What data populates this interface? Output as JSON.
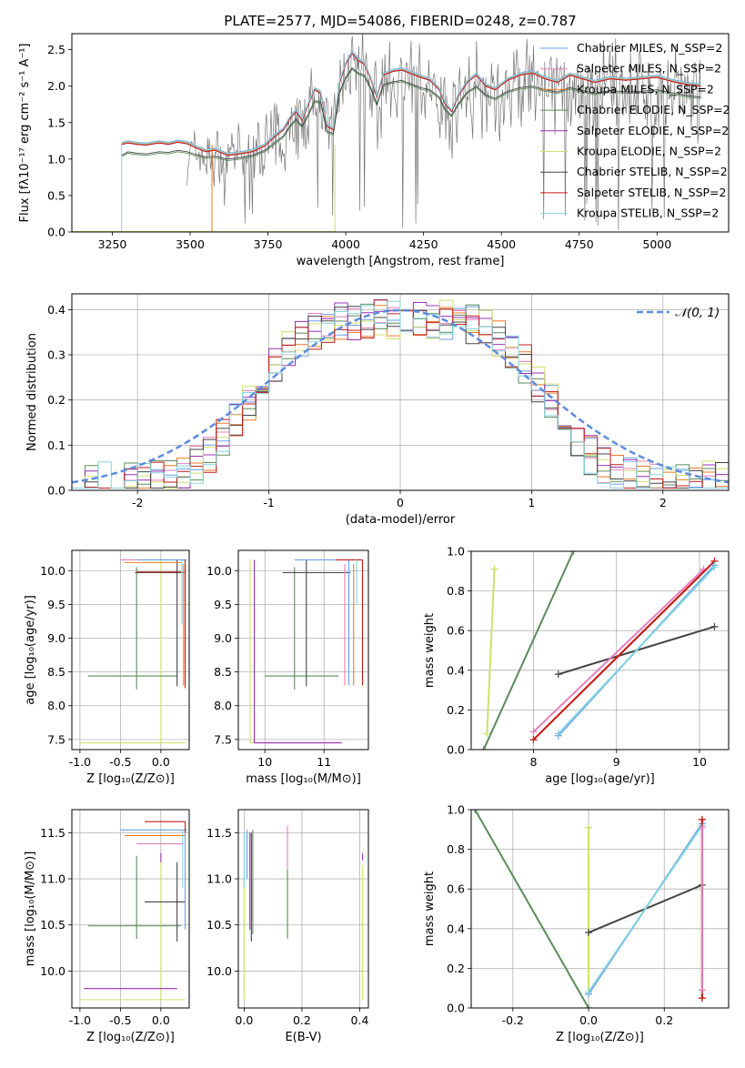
{
  "chart_data": [
    {
      "type": "line",
      "panel": "spectrum",
      "title": "PLATE=2577, MJD=54086, FIBERID=0248, z=0.787",
      "xlabel": "wavelength [Angstrom, rest frame]",
      "ylabel": "Flux [fλ10⁻¹⁷ erg cm⁻² s⁻¹ A⁻¹]",
      "xlim": [
        3120,
        5230
      ],
      "ylim": [
        0,
        2.72
      ],
      "xticks": [
        3250,
        3500,
        3750,
        4000,
        4250,
        4500,
        4750,
        5000
      ],
      "yticks": [
        0.0,
        0.5,
        1.0,
        1.5,
        2.0,
        2.5
      ],
      "grid": false,
      "legend_position": "top-right",
      "series": [
        {
          "name": "Chabrier MILES, N_SSP=2",
          "color": "#6a9fe8"
        },
        {
          "name": "Salpeter MILES, N_SSP=2",
          "color": "#e77fbc"
        },
        {
          "name": "Kroupa MILES, N_SSP=2",
          "color": "#ee7a22"
        },
        {
          "name": "Chabrier ELODIE, N_SSP=2",
          "color": "#5b8a5b"
        },
        {
          "name": "Salpeter ELODIE, N_SSP=2",
          "color": "#9b2fb8"
        },
        {
          "name": "Kroupa ELODIE, N_SSP=2",
          "color": "#cfe06a"
        },
        {
          "name": "Chabrier STELIB, N_SSP=2",
          "color": "#444444"
        },
        {
          "name": "Salpeter STELIB, N_SSP=2",
          "color": "#c41a1a"
        },
        {
          "name": "Kroupa STELIB, N_SSP=2",
          "color": "#86d3e0"
        }
      ],
      "model_curves": {
        "upper": {
          "x": [
            3280,
            3300,
            3330,
            3360,
            3400,
            3430,
            3460,
            3490,
            3520,
            3550,
            3580,
            3620,
            3660,
            3700,
            3740,
            3770,
            3800,
            3820,
            3840,
            3860,
            3880,
            3900,
            3920,
            3940,
            3960,
            3980,
            4000,
            4020,
            4040,
            4060,
            4080,
            4100,
            4120,
            4150,
            4180,
            4210,
            4240,
            4270,
            4300,
            4320,
            4340,
            4360,
            4390,
            4420,
            4450,
            4480,
            4520,
            4560,
            4600,
            4640,
            4680,
            4720,
            4760,
            4800,
            4850,
            4900,
            4950,
            5000,
            5060,
            5100,
            5140
          ],
          "y": [
            1.2,
            1.22,
            1.2,
            1.19,
            1.22,
            1.2,
            1.23,
            1.21,
            1.15,
            1.1,
            1.12,
            1.05,
            1.07,
            1.1,
            1.18,
            1.3,
            1.4,
            1.55,
            1.65,
            1.53,
            1.75,
            1.95,
            1.9,
            1.45,
            1.4,
            2.05,
            2.3,
            2.45,
            2.35,
            2.3,
            2.1,
            1.85,
            2.15,
            2.2,
            2.22,
            2.17,
            2.12,
            2.08,
            1.95,
            1.75,
            1.65,
            1.85,
            2.05,
            2.15,
            2.0,
            1.95,
            2.08,
            2.15,
            2.18,
            2.1,
            2.05,
            2.15,
            2.1,
            2.05,
            2.1,
            2.08,
            2.1,
            2.12,
            2.05,
            2.02,
            2.0
          ]
        },
        "lower": {
          "x": [
            3280,
            3300,
            3330,
            3360,
            3400,
            3430,
            3460,
            3490,
            3520,
            3550,
            3580,
            3620,
            3660,
            3700,
            3740,
            3770,
            3800,
            3820,
            3840,
            3860,
            3880,
            3900,
            3920,
            3940,
            3960,
            3980,
            4000,
            4020,
            4040,
            4060,
            4080,
            4100,
            4120,
            4150,
            4180,
            4210,
            4240,
            4270,
            4300,
            4320,
            4340,
            4360,
            4390,
            4420,
            4450,
            4480,
            4520,
            4560,
            4600,
            4640,
            4680,
            4720,
            4760,
            4800,
            4850,
            4900,
            4950,
            5000,
            5060,
            5100,
            5140
          ],
          "y": [
            1.05,
            1.1,
            1.08,
            1.07,
            1.1,
            1.09,
            1.12,
            1.1,
            1.06,
            1.03,
            1.04,
            1.0,
            1.02,
            1.05,
            1.12,
            1.22,
            1.32,
            1.45,
            1.55,
            1.45,
            1.62,
            1.8,
            1.78,
            1.38,
            1.35,
            1.92,
            2.12,
            2.25,
            2.18,
            2.15,
            1.98,
            1.75,
            2.02,
            2.06,
            2.08,
            2.03,
            1.98,
            1.95,
            1.85,
            1.68,
            1.6,
            1.75,
            1.92,
            2.0,
            1.88,
            1.83,
            1.93,
            1.98,
            2.0,
            1.95,
            1.92,
            1.98,
            1.94,
            1.9,
            1.94,
            1.92,
            1.93,
            1.95,
            1.9,
            1.87,
            1.85
          ]
        },
        "drop_lines": [
          {
            "x": 3280,
            "color": "#86d3e0"
          },
          {
            "x": 3570,
            "color": "#ee7a22"
          },
          {
            "x": 3965,
            "color": "#cfe06a"
          }
        ]
      }
    },
    {
      "type": "histogram",
      "panel": "residuals",
      "xlabel": "(data-model)/error",
      "ylabel": "Normed distribution",
      "xlim": [
        -2.5,
        2.5
      ],
      "ylim": [
        0,
        0.435
      ],
      "xticks": [
        -2,
        -1,
        0,
        1,
        2
      ],
      "yticks": [
        0.0,
        0.1,
        0.2,
        0.3,
        0.4
      ],
      "grid": true,
      "legend_position": "top-right",
      "legend": [
        {
          "name": "𝒩(0, 1)",
          "color": "#5b8be0",
          "style": "dashed"
        }
      ],
      "bin_edges_range": [
        -2.5,
        2.5
      ],
      "bin_count": 50
    },
    {
      "type": "errorbar",
      "panel": "age-vs-Z",
      "xlabel": "Z [log₁₀(Z/Z⊙)]",
      "ylabel": "age  [log₁₀(age/yr)]",
      "xlim": [
        -1.1,
        0.35
      ],
      "ylim": [
        7.35,
        10.3
      ],
      "xticks": [
        -1.0,
        -0.5,
        0.0
      ],
      "yticks": [
        7.5,
        8.0,
        8.5,
        9.0,
        9.5,
        10.0
      ],
      "grid": true
    },
    {
      "type": "errorbar",
      "panel": "age-vs-mass",
      "xlabel": "mass [log₁₀(M/M⊙)]",
      "xlim": [
        9.55,
        11.75
      ],
      "ylim": [
        7.35,
        10.3
      ],
      "xticks": [
        10,
        11
      ],
      "yticks": [
        7.5,
        8.0,
        8.5,
        9.0,
        9.5,
        10.0
      ],
      "grid": true
    },
    {
      "type": "line",
      "panel": "weight-vs-age",
      "xlabel": "age  [log₁₀(age/yr)]",
      "ylabel": "mass weight",
      "xlim": [
        7.25,
        10.35
      ],
      "ylim": [
        0.0,
        1.0
      ],
      "xticks": [
        8,
        9,
        10
      ],
      "yticks": [
        0.0,
        0.2,
        0.4,
        0.6,
        0.8,
        1.0
      ],
      "grid": true,
      "series": [
        {
          "color": "#cfe06a",
          "x": [
            7.44,
            7.53
          ],
          "y": [
            0.08,
            0.91
          ]
        },
        {
          "color": "#5b8a5b",
          "x": [
            7.4,
            8.48
          ],
          "y": [
            0.0,
            1.0
          ]
        },
        {
          "color": "#444444",
          "x": [
            8.3,
            10.18
          ],
          "y": [
            0.38,
            0.62
          ]
        },
        {
          "color": "#e77fbc",
          "x": [
            8.0,
            10.05
          ],
          "y": [
            0.09,
            0.91
          ]
        },
        {
          "color": "#ee7a22",
          "x": [
            8.0,
            10.18
          ],
          "y": [
            0.05,
            0.95
          ]
        },
        {
          "color": "#c41a1a",
          "x": [
            8.0,
            10.18
          ],
          "y": [
            0.05,
            0.95
          ]
        },
        {
          "color": "#6a9fe8",
          "x": [
            8.3,
            10.18
          ],
          "y": [
            0.07,
            0.93
          ]
        },
        {
          "color": "#86d3e0",
          "x": [
            8.3,
            10.18
          ],
          "y": [
            0.08,
            0.92
          ]
        }
      ]
    },
    {
      "type": "errorbar",
      "panel": "mass-vs-Z",
      "xlabel": "Z [log₁₀(Z/Z⊙)]",
      "ylabel": "mass [log₁₀(M/M⊙)]",
      "xlim": [
        -1.1,
        0.35
      ],
      "ylim": [
        9.6,
        11.75
      ],
      "xticks": [
        -1.0,
        -0.5,
        0.0
      ],
      "yticks": [
        10.0,
        10.5,
        11.0,
        11.5
      ],
      "grid": true
    },
    {
      "type": "errorbar",
      "panel": "mass-vs-EBV",
      "xlabel": "E(B-V)",
      "xlim": [
        -0.02,
        0.43
      ],
      "ylim": [
        9.6,
        11.75
      ],
      "xticks": [
        0.0,
        0.2,
        0.4
      ],
      "yticks": [
        10.0,
        10.5,
        11.0,
        11.5
      ],
      "grid": true
    },
    {
      "type": "line",
      "panel": "weight-vs-Z",
      "xlabel": "Z [log₁₀(Z/Z⊙)]",
      "ylabel": "mass weight",
      "xlim": [
        -0.31,
        0.37
      ],
      "ylim": [
        0.0,
        1.0
      ],
      "xticks": [
        -0.2,
        0.0,
        0.2
      ],
      "yticks": [
        0.0,
        0.2,
        0.4,
        0.6,
        0.8,
        1.0
      ],
      "grid": true,
      "series": [
        {
          "color": "#5b8a5b",
          "x": [
            -0.3,
            0.0
          ],
          "y": [
            1.0,
            0.0
          ]
        },
        {
          "color": "#cfe06a",
          "x": [
            0.0,
            0.0
          ],
          "y": [
            0.08,
            0.91
          ]
        },
        {
          "color": "#444444",
          "x": [
            0.0,
            0.3
          ],
          "y": [
            0.38,
            0.62
          ]
        },
        {
          "color": "#6a9fe8",
          "x": [
            0.0,
            0.3
          ],
          "y": [
            0.07,
            0.93
          ]
        },
        {
          "color": "#86d3e0",
          "x": [
            0.0,
            0.3
          ],
          "y": [
            0.08,
            0.92
          ]
        },
        {
          "color": "#ee7a22",
          "x": [
            0.3,
            0.3
          ],
          "y": [
            0.05,
            0.95
          ]
        },
        {
          "color": "#c41a1a",
          "x": [
            0.3,
            0.3
          ],
          "y": [
            0.05,
            0.95
          ]
        },
        {
          "color": "#e77fbc",
          "x": [
            0.3,
            0.3
          ],
          "y": [
            0.09,
            0.91
          ]
        }
      ]
    }
  ]
}
